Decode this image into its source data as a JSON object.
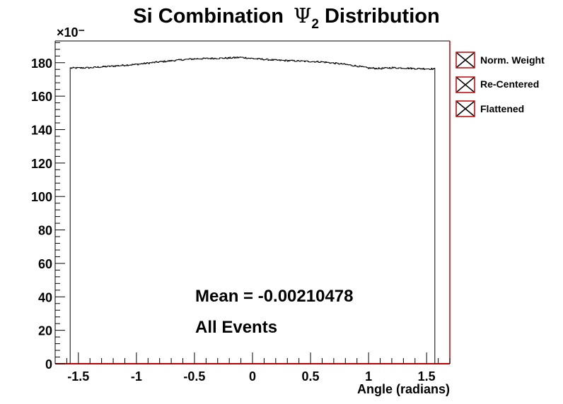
{
  "chart_data": {
    "type": "line",
    "title_prefix": "Si Combination",
    "title_symbol": "Ψ",
    "title_subscript": "2",
    "title_suffix": "Distribution",
    "xlabel": "Angle (radians)",
    "ylabel": "",
    "y_multiplier": "×10⁻",
    "xlim": [
      -1.7,
      1.7
    ],
    "ylim": [
      0,
      193
    ],
    "xticks": [
      -1.5,
      -1,
      -0.5,
      0,
      0.5,
      1,
      1.5
    ],
    "xtick_labels": [
      "-1.5",
      "-1",
      "-0.5",
      "0",
      "0.5",
      "1",
      "1.5"
    ],
    "yticks": [
      0,
      20,
      40,
      60,
      80,
      100,
      120,
      140,
      160,
      180
    ],
    "ytick_labels": [
      "0",
      "20",
      "40",
      "60",
      "80",
      "100",
      "120",
      "140",
      "160",
      "180"
    ],
    "grid": false,
    "legend_position": "right",
    "series": [
      {
        "name": "Norm. Weight",
        "x_range": [
          -1.5708,
          1.5708
        ],
        "profile_x": [
          -1.5708,
          -1.4,
          -1.2,
          -1.0,
          -0.8,
          -0.6,
          -0.5,
          -0.4,
          -0.2,
          -0.1,
          0.0,
          0.2,
          0.4,
          0.6,
          0.8,
          0.9,
          1.0,
          1.1,
          1.2,
          1.3,
          1.4,
          1.5708
        ],
        "profile_y": [
          176.8,
          177.0,
          178.0,
          179.0,
          180.5,
          181.8,
          182.3,
          182.5,
          182.8,
          183.2,
          182.5,
          181.5,
          181.0,
          180.5,
          179.0,
          178.0,
          176.8,
          176.5,
          177.0,
          176.8,
          176.5,
          176.3
        ]
      },
      {
        "name": "Re-Centered"
      },
      {
        "name": "Flattened"
      }
    ],
    "annotations": [
      "Mean = -0.00210478",
      "All Events"
    ]
  }
}
